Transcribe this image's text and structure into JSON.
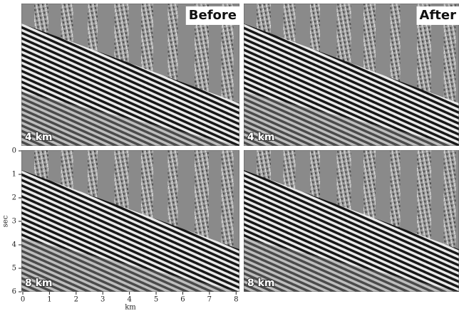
{
  "chart_data": [
    {
      "type": "image",
      "tag": "Before",
      "corner_label": "4 km"
    },
    {
      "type": "image",
      "tag": "After",
      "corner_label": "4 km"
    },
    {
      "type": "image",
      "corner_label": "8 km",
      "xlabel": "km",
      "ylabel": "sec",
      "xlim": [
        0,
        8.1
      ],
      "xticks": [
        0,
        1,
        2,
        3,
        4,
        5,
        6,
        7,
        8
      ],
      "ylim": [
        0,
        6
      ],
      "yticks": [
        0,
        1,
        2,
        3,
        4,
        5,
        6
      ]
    },
    {
      "type": "image",
      "corner_label": "8 km"
    }
  ]
}
